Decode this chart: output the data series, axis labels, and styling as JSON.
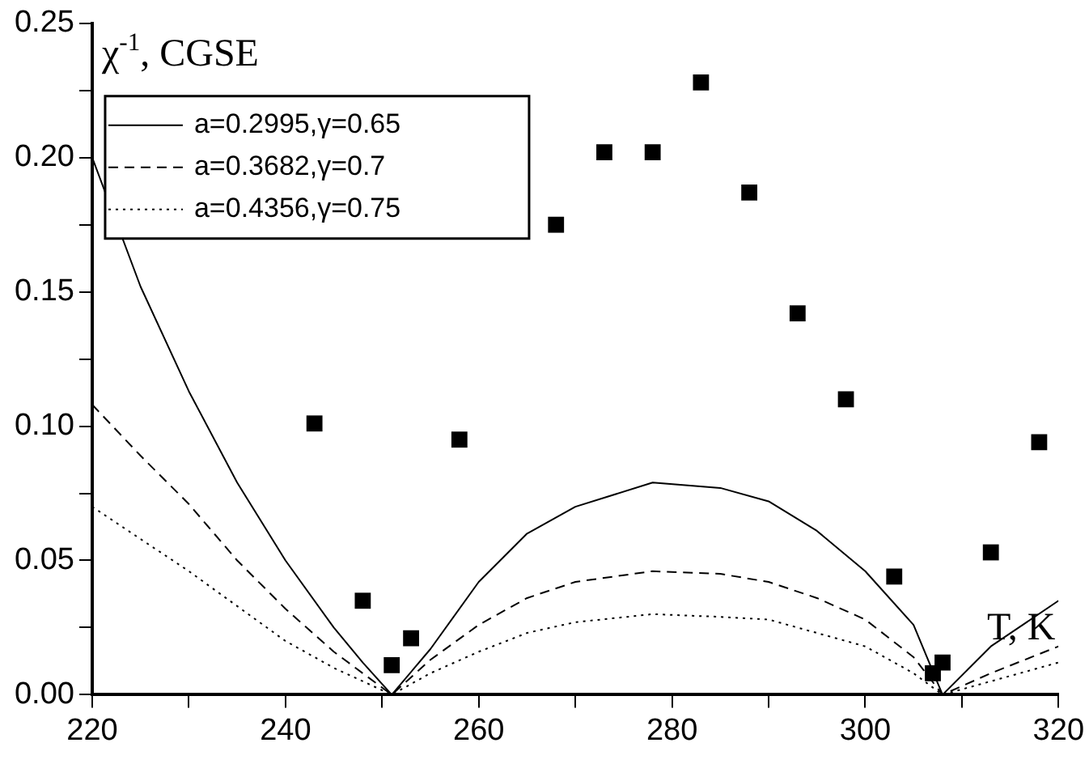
{
  "chart_data": {
    "type": "scatter",
    "xlabel": "T, K",
    "ylabel": "χ$^{-1}$, CGSE",
    "xlim": [
      220,
      320
    ],
    "ylim": [
      0,
      0.25
    ],
    "xticks": [
      220,
      {
        "value": 230,
        "label": null
      },
      240,
      {
        "value": 250,
        "label": null
      },
      260,
      {
        "value": 270,
        "label": null
      },
      280,
      {
        "value": 290,
        "label": null
      },
      300,
      {
        "value": 310,
        "label": null
      },
      320
    ],
    "yticks": [
      {
        "value": 0,
        "label": "0.00"
      },
      {
        "value": 0.025,
        "label": null
      },
      {
        "value": 0.05,
        "label": "0.05"
      },
      {
        "value": 0.075,
        "label": null
      },
      {
        "value": 0.1,
        "label": "0.10"
      },
      {
        "value": 0.125,
        "label": null
      },
      {
        "value": 0.15,
        "label": "0.15"
      },
      {
        "value": 0.175,
        "label": null
      },
      {
        "value": 0.2,
        "label": "0.20"
      },
      {
        "value": 0.225,
        "label": null
      },
      {
        "value": 0.25,
        "label": "0.25"
      }
    ],
    "grid": false,
    "legend": "top left",
    "marker": "square",
    "series": [
      {
        "color": "#000000",
        "x": [
          243,
          248,
          251,
          253,
          258,
          268,
          273,
          278,
          283,
          288,
          293,
          298,
          303,
          307,
          308,
          313,
          318
        ],
        "values": [
          0.101,
          0.035,
          0.011,
          0.021,
          0.095,
          0.175,
          0.202,
          0.202,
          0.228,
          0.187,
          0.142,
          0.11,
          0.044,
          0.008,
          0.012,
          0.053,
          0.094
        ]
      },
      {
        "type": "line",
        "name": "a=0.2995,γ=0.65",
        "color": "#000000",
        "line_style": "solid",
        "marker": "none",
        "x": [
          220,
          225,
          230,
          235,
          240,
          245,
          248,
          251,
          255,
          260,
          265,
          270,
          278,
          285,
          290,
          295,
          300,
          305,
          308,
          313,
          320
        ],
        "values": [
          0.2,
          0.152,
          0.113,
          0.079,
          0.05,
          0.025,
          0.012,
          0.0,
          0.017,
          0.042,
          0.06,
          0.07,
          0.079,
          0.077,
          0.072,
          0.061,
          0.046,
          0.026,
          0.0,
          0.018,
          0.035
        ]
      },
      {
        "type": "line",
        "name": "a=0.3682,γ=0.7",
        "color": "#000000",
        "line_style": "dashed",
        "marker": "none",
        "x": [
          220,
          225,
          230,
          235,
          240,
          245,
          251,
          255,
          260,
          265,
          270,
          278,
          285,
          290,
          295,
          300,
          305,
          308,
          313,
          320
        ],
        "values": [
          0.108,
          0.089,
          0.071,
          0.05,
          0.032,
          0.016,
          0.0,
          0.013,
          0.026,
          0.036,
          0.042,
          0.046,
          0.045,
          0.042,
          0.036,
          0.028,
          0.014,
          0.0,
          0.008,
          0.018
        ]
      },
      {
        "type": "line",
        "name": "a=0.4356,γ=0.75",
        "color": "#000000",
        "line_style": "dotted",
        "marker": "none",
        "x": [
          220,
          225,
          230,
          235,
          240,
          245,
          251,
          255,
          260,
          265,
          270,
          278,
          285,
          290,
          295,
          300,
          305,
          308,
          313,
          320
        ],
        "values": [
          0.07,
          0.058,
          0.046,
          0.033,
          0.02,
          0.01,
          0.0,
          0.008,
          0.016,
          0.023,
          0.027,
          0.03,
          0.029,
          0.028,
          0.023,
          0.018,
          0.008,
          0.0,
          0.005,
          0.012
        ]
      }
    ]
  }
}
